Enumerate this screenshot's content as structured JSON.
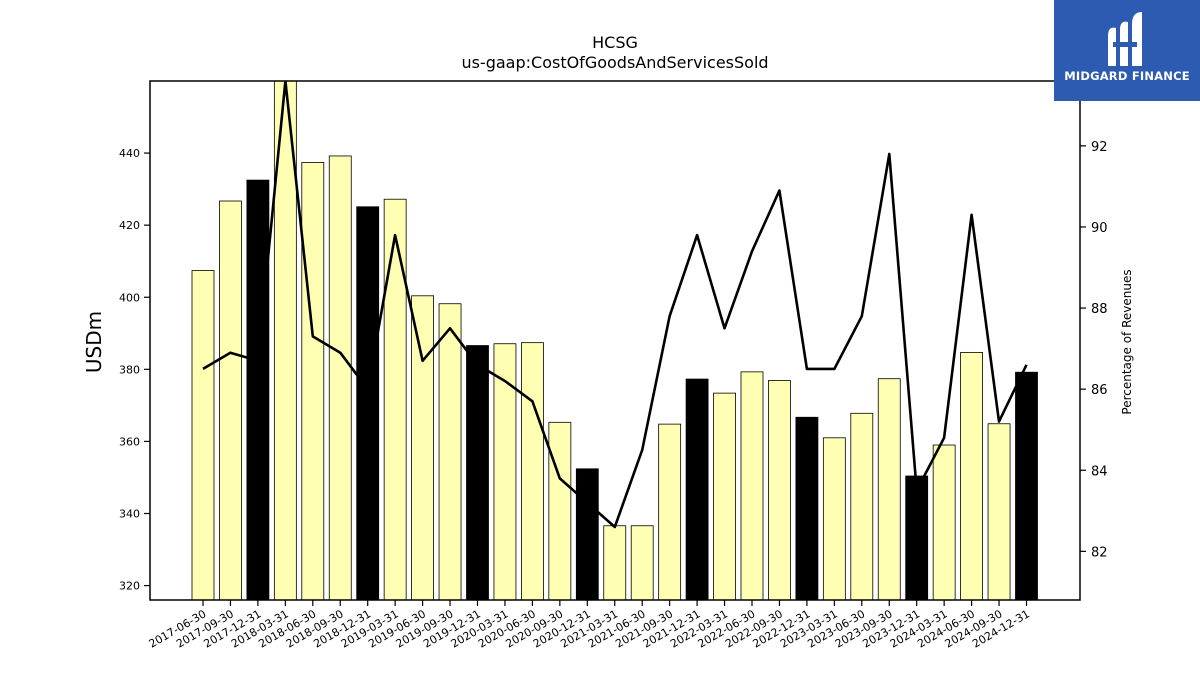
{
  "brand": {
    "name": "MIDGARD FINANCE",
    "bg": "#2d5bb1"
  },
  "colors": {
    "bar_regular": "#ffffb4",
    "bar_q4": "#000000",
    "line": "#000000"
  },
  "chart_data": {
    "type": "bar",
    "title": "HCSG",
    "subtitle": "us-gaap:CostOfGoodsAndServicesSold",
    "ylabel": "USDm",
    "y2label": "Percentage of Revenues",
    "ylim": [
      316,
      460
    ],
    "y2lim": [
      80.8,
      93.6
    ],
    "yticks": [
      320,
      340,
      360,
      380,
      400,
      420,
      440
    ],
    "y2ticks": [
      82,
      84,
      86,
      88,
      90,
      92
    ],
    "grid": false,
    "categories": [
      "2017-06-30",
      "2017-09-30",
      "2017-12-31",
      "2018-03-31",
      "2018-06-30",
      "2018-09-30",
      "2018-12-31",
      "2019-03-31",
      "2019-06-30",
      "2019-09-30",
      "2019-12-31",
      "2020-03-31",
      "2020-06-30",
      "2020-09-30",
      "2020-12-31",
      "2021-03-31",
      "2021-06-30",
      "2021-09-30",
      "2021-12-31",
      "2022-03-31",
      "2022-06-30",
      "2022-09-30",
      "2022-12-31",
      "2023-03-31",
      "2023-06-30",
      "2023-09-30",
      "2023-12-31",
      "2024-03-31",
      "2024-06-30",
      "2024-09-30",
      "2024-12-31"
    ],
    "series": [
      {
        "type": "bar",
        "axis": "left",
        "values": [
          407.4,
          426.7,
          432.5,
          461.0,
          437.4,
          439.2,
          425.1,
          427.2,
          400.4,
          398.2,
          386.6,
          387.1,
          387.4,
          365.3,
          352.4,
          336.6,
          336.6,
          364.8,
          377.3,
          373.4,
          379.3,
          376.9,
          366.7,
          361.0,
          367.8,
          377.4,
          350.4,
          359.0,
          384.7,
          364.9,
          379.2
        ],
        "highlight_q4": true
      },
      {
        "type": "line",
        "axis": "right",
        "values": [
          86.5,
          86.9,
          86.7,
          93.6,
          87.3,
          86.9,
          86.0,
          89.8,
          86.7,
          87.5,
          86.6,
          86.2,
          85.7,
          83.8,
          83.2,
          82.6,
          84.5,
          87.8,
          89.8,
          87.5,
          89.4,
          90.9,
          86.5,
          86.5,
          87.8,
          91.8,
          83.5,
          84.8,
          90.3,
          85.2,
          86.6
        ]
      }
    ]
  }
}
